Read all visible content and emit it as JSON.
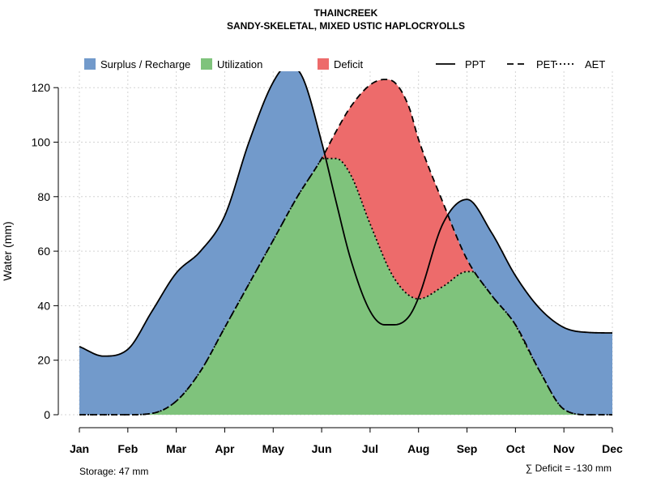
{
  "chart_data": {
    "type": "area",
    "title": "THAINCREEK",
    "subtitle": "SANDY-SKELETAL, MIXED USTIC HAPLOCRYOLLS",
    "ylabel": "Water (mm)",
    "xlabel": "",
    "ylim": [
      0,
      126
    ],
    "yticks": [
      0,
      20,
      40,
      60,
      80,
      100,
      120
    ],
    "categories": [
      "Jan",
      "Feb",
      "Mar",
      "Apr",
      "May",
      "Jun",
      "Jul",
      "Aug",
      "Sep",
      "Oct",
      "Nov",
      "Dec"
    ],
    "series": [
      {
        "name": "PPT",
        "style": "solid",
        "x": [
          1,
          1.5,
          2,
          2.5,
          3,
          3.5,
          4,
          4.5,
          5,
          5.3,
          5.6,
          6,
          6.3,
          6.6,
          7,
          7.3,
          7.5,
          7.8,
          8,
          8.5,
          9,
          9.5,
          10,
          10.5,
          11,
          11.5,
          12
        ],
        "values": [
          25,
          21.5,
          24,
          38,
          52,
          60,
          73,
          100,
          122,
          128,
          124,
          100,
          78,
          57,
          38,
          33,
          33,
          36,
          43,
          70,
          79,
          67,
          51,
          39,
          32,
          30.2,
          30
        ]
      },
      {
        "name": "PET",
        "style": "dashed",
        "x": [
          1,
          1.5,
          2,
          2.5,
          3,
          3.5,
          4,
          4.5,
          5,
          5.5,
          6,
          6.3,
          6.6,
          7,
          7.3,
          7.5,
          7.8,
          8,
          8.5,
          9,
          9.5,
          10,
          10.5,
          11,
          11.5,
          12
        ],
        "values": [
          0,
          0,
          0,
          0.5,
          5,
          16,
          32,
          48,
          64,
          80,
          94,
          104,
          113,
          121,
          123,
          122,
          113,
          101,
          78,
          57,
          44,
          33,
          16,
          2,
          0,
          0
        ]
      },
      {
        "name": "AET",
        "style": "dotted",
        "x": [
          1,
          1.5,
          2,
          2.5,
          3,
          3.5,
          4,
          4.5,
          5,
          5.5,
          6,
          6.3,
          6.6,
          7,
          7.5,
          8,
          8.5,
          9,
          9.5,
          10,
          10.5,
          11,
          11.5,
          12
        ],
        "values": [
          0,
          0,
          0,
          0.5,
          5,
          16,
          32,
          48,
          64,
          80,
          94,
          94,
          88,
          70,
          50,
          42.5,
          47,
          52.5,
          50,
          33,
          16,
          2,
          0,
          0
        ]
      }
    ],
    "legend": [
      {
        "label": "Surplus / Recharge",
        "kind": "box",
        "color": "#729acb"
      },
      {
        "label": "Utilization",
        "kind": "box",
        "color": "#7fc37c"
      },
      {
        "label": "Deficit",
        "kind": "box",
        "color": "#ed6b6b"
      },
      {
        "label": "PPT",
        "kind": "line",
        "dash": "solid"
      },
      {
        "label": "PET",
        "kind": "line",
        "dash": "dashed"
      },
      {
        "label": "AET",
        "kind": "line",
        "dash": "dotted"
      }
    ],
    "legend_position": "top",
    "grid": true,
    "annotations": {
      "storage": "Storage: 47 mm",
      "deficit": "∑ Deficit = -130 mm"
    },
    "colors": {
      "surplus": "#729acb",
      "utilization": "#7fc37c",
      "deficit": "#ed6b6b",
      "line": "#000000",
      "grid": "#d3d3d3"
    }
  }
}
